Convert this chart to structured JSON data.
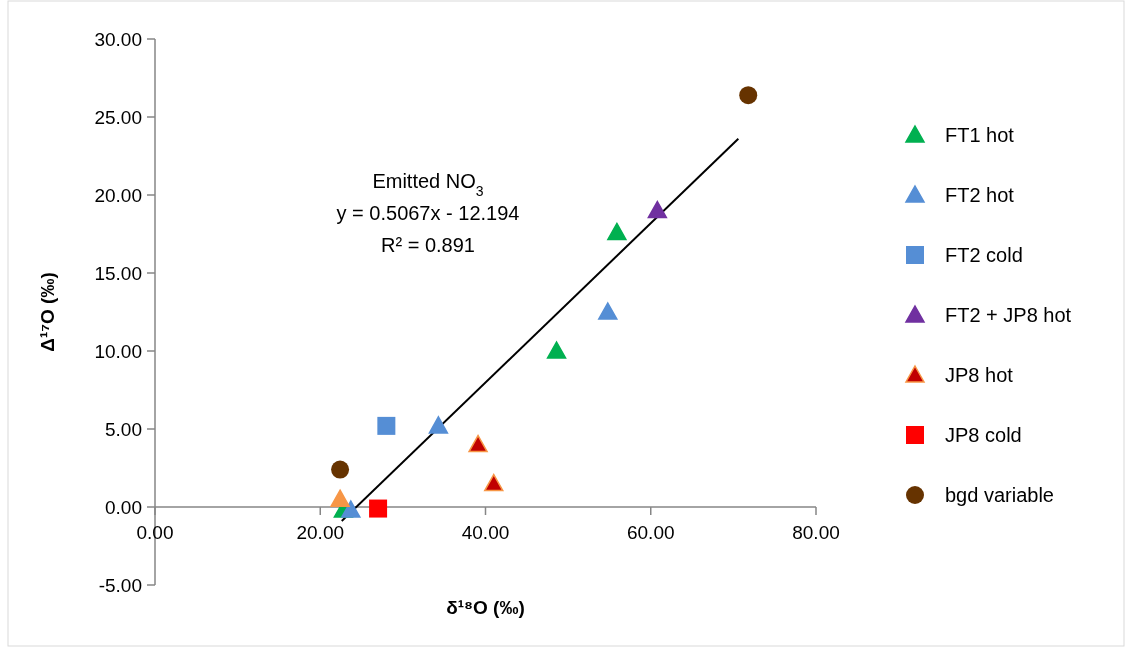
{
  "chart_data": {
    "type": "scatter",
    "xlabel": "δ¹⁸O (‰)",
    "ylabel": "Δ¹⁷O (‰)",
    "xlim": [
      0,
      80
    ],
    "xticks": [
      {
        "value": 0,
        "label": "0.00"
      },
      {
        "value": 20,
        "label": "20.00"
      },
      {
        "value": 40,
        "label": "40.00"
      },
      {
        "value": 60,
        "label": "60.00"
      },
      {
        "value": 80,
        "label": "80.00"
      }
    ],
    "ylim": [
      -5,
      30
    ],
    "yticks": [
      {
        "value": -5,
        "label": "-5.00"
      },
      {
        "value": 0,
        "label": "0.00"
      },
      {
        "value": 5,
        "label": "5.00"
      },
      {
        "value": 10,
        "label": "10.00"
      },
      {
        "value": 15,
        "label": "15.00"
      },
      {
        "value": 20,
        "label": "20.00"
      },
      {
        "value": 25,
        "label": "25.00"
      },
      {
        "value": 30,
        "label": "30.00"
      }
    ],
    "grid": false,
    "legend": "right",
    "annotations": [
      "Emitted NO$_{3}$",
      "y = 0.5067x - 12.194",
      "R² = 0.891"
    ],
    "series": [
      {
        "name": "FT1 hot",
        "color": "#00b050",
        "marker": "triangle",
        "x": [
          48.6,
          55.9,
          22.8
        ],
        "values": [
          10.0,
          17.6,
          -0.2
        ]
      },
      {
        "name": "FT2 hot",
        "color": "#558ed5",
        "marker": "triangle",
        "x": [
          54.8,
          34.3,
          23.7
        ],
        "values": [
          12.5,
          5.2,
          -0.2
        ]
      },
      {
        "name": "FT2 cold",
        "color": "#558ed5",
        "marker": "square",
        "x": [
          28.0
        ],
        "values": [
          5.2
        ]
      },
      {
        "name": "FT2 + JP8 hot",
        "color": "#7030a0",
        "marker": "triangle",
        "x": [
          60.8
        ],
        "values": [
          19.0
        ]
      },
      {
        "name": "JP8 hot",
        "color": "#c00000",
        "marker": "triangle",
        "x": [
          39.1,
          41.0
        ],
        "values": [
          4.0,
          1.5
        ]
      },
      {
        "name": "JP8 cold",
        "color": "#ff0000",
        "marker": "square",
        "x": [
          27.0
        ],
        "values": [
          -0.1
        ]
      },
      {
        "name": "bgd variable",
        "color": "#663300",
        "marker": "circle",
        "x": [
          22.4,
          71.8
        ],
        "values": [
          2.4,
          26.4
        ]
      },
      {
        "color": "#f79646",
        "marker": "triangle",
        "x": [
          22.4
        ],
        "values": [
          0.5
        ]
      },
      {
        "type": "line",
        "color": "#000000",
        "marker": "none",
        "x": [
          22.6,
          70.6
        ],
        "values": [
          -0.9,
          23.6
        ]
      }
    ]
  }
}
